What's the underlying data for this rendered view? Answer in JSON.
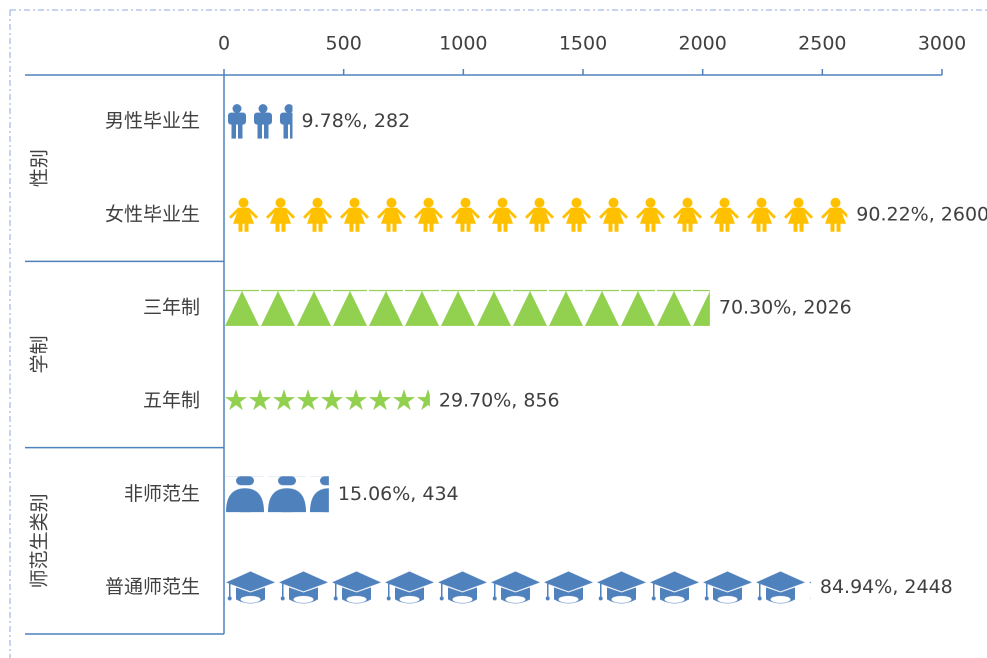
{
  "chart_data": {
    "type": "bar",
    "orientation": "horizontal",
    "group_labels": [
      "性别",
      "学制",
      "师范生类别"
    ],
    "categories": [
      "男性毕业生",
      "女性毕业生",
      "三年制",
      "五年制",
      "非师范生",
      "普通师范生"
    ],
    "values": [
      282,
      2600,
      2026,
      856,
      434,
      2448
    ],
    "value_labels": [
      "9.78%, 282",
      "90.22%, 2600",
      "70.30%, 2026",
      "29.70%, 856",
      "15.06%, 434",
      "84.94%, 2448"
    ],
    "colors": [
      "#4f81bd",
      "#ffc000",
      "#92d050",
      "#92d050",
      "#4f81bd",
      "#4f81bd"
    ],
    "xlim": [
      0,
      3000
    ],
    "xticks": [
      0,
      500,
      1000,
      1500,
      2000,
      2500,
      3000
    ]
  }
}
